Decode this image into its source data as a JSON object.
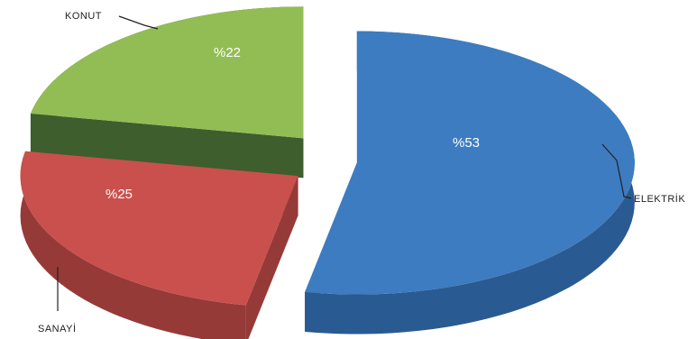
{
  "chart_data": {
    "type": "pie",
    "style": "3d-exploded",
    "slices": [
      {
        "category": "ELEKTRİK",
        "value": 53,
        "label": "%53",
        "color": "#3D7CC0",
        "side_color": "#2A5A92"
      },
      {
        "category": "SANAYİ",
        "value": 25,
        "label": "%25",
        "color": "#C9504D",
        "side_color": "#963A38"
      },
      {
        "category": "KONUT",
        "value": 22,
        "label": "%22",
        "color": "#92BD55",
        "side_color": "#3E5E2E"
      }
    ],
    "legend": "none"
  }
}
